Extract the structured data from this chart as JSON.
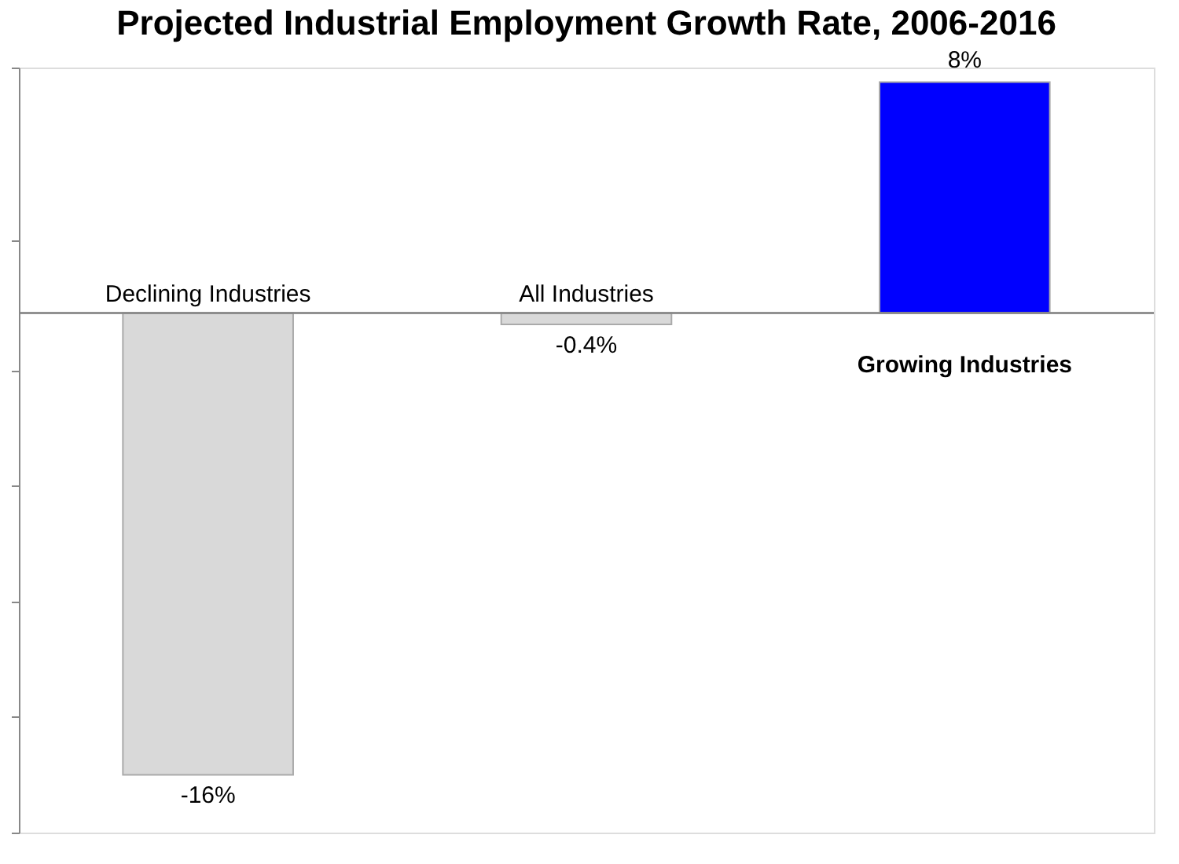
{
  "chart_data": {
    "type": "bar",
    "title": "Projected Industrial Employment Growth Rate, 2006-2016",
    "categories": [
      "Declining Industries",
      "All Industries",
      "Growing Industries"
    ],
    "values": [
      -16,
      -0.4,
      8
    ],
    "colors": [
      "#d9d9d9",
      "#d9d9d9",
      "#0000ff"
    ],
    "value_labels": [
      "-16%",
      "-0.4%",
      "8%"
    ],
    "ylim": [
      -18,
      8.5
    ],
    "yticks": [
      {
        "value": -18,
        "label": null
      },
      {
        "value": -14,
        "label": null
      },
      {
        "value": -10,
        "label": null
      },
      {
        "value": -6,
        "label": null
      },
      {
        "value": -2,
        "label": null
      },
      {
        "value": 2.5,
        "label": null
      },
      {
        "value": 8.5,
        "label": null
      }
    ],
    "grid": false
  }
}
